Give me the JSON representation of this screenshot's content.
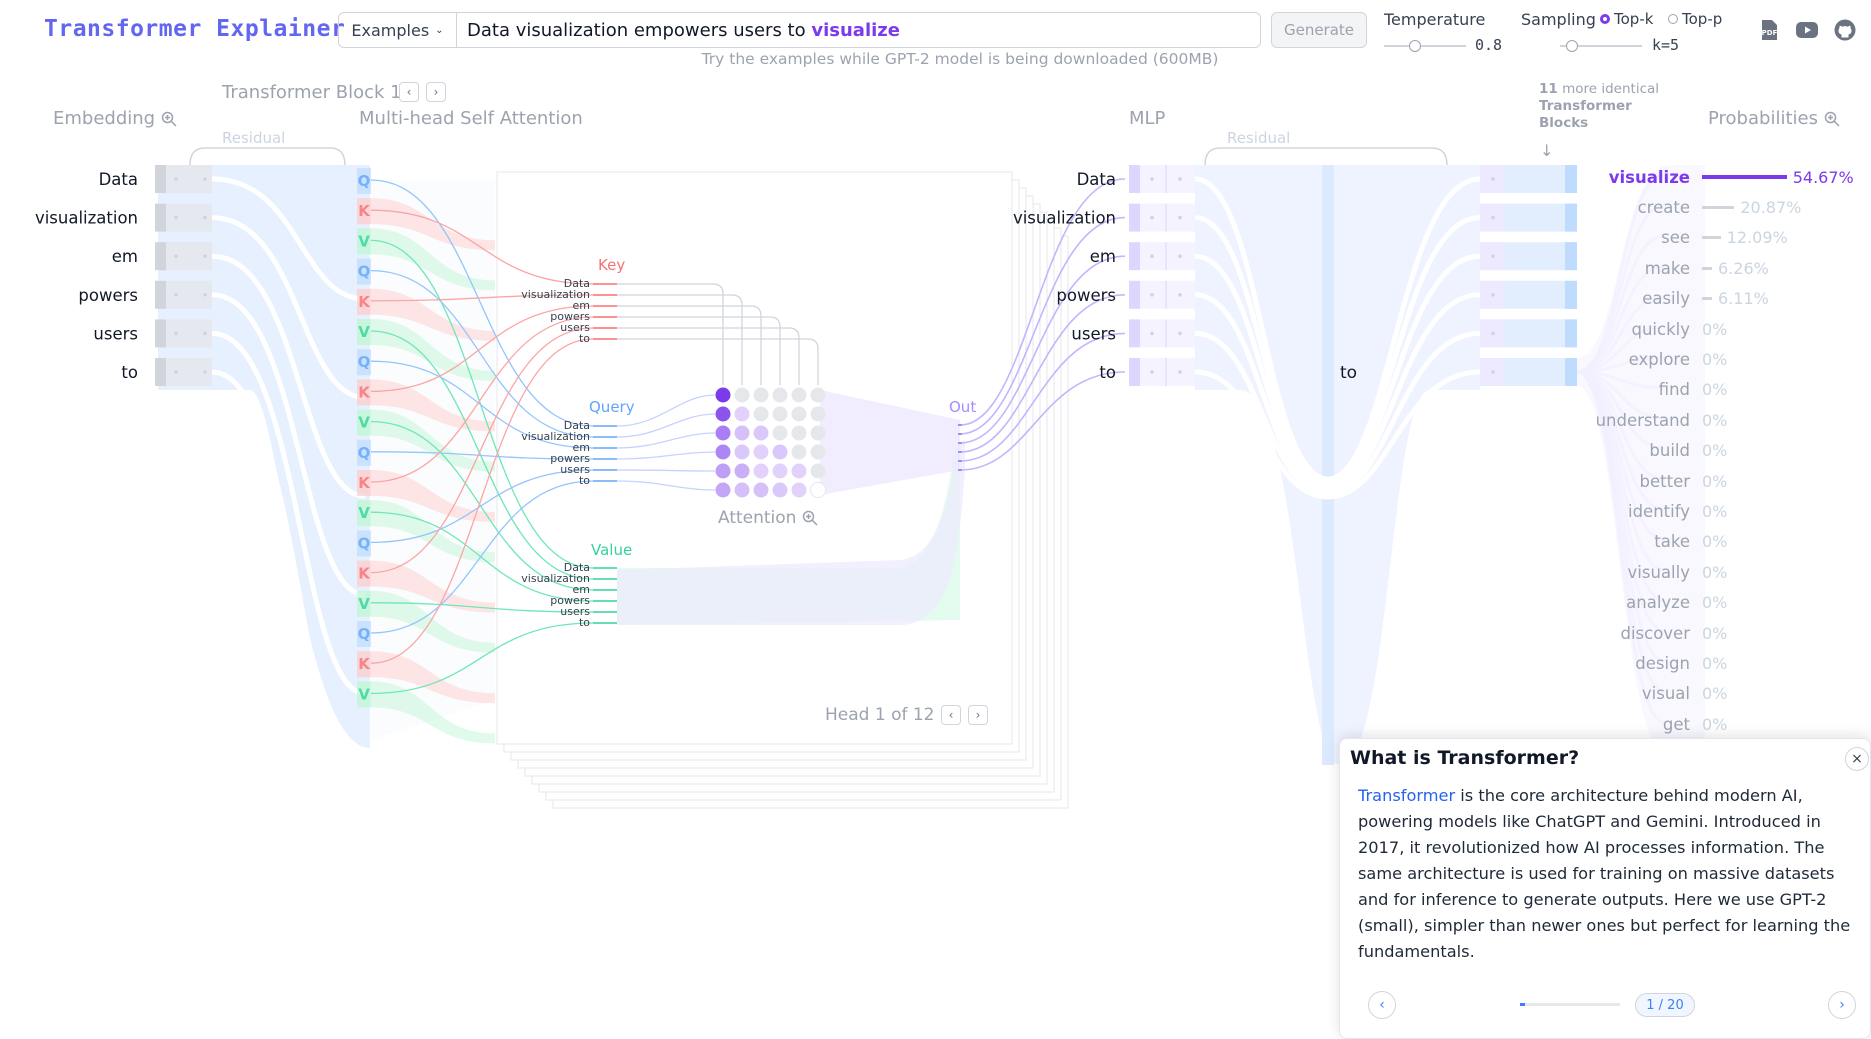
{
  "app": {
    "title": "Transformer Explainer"
  },
  "input": {
    "examples_label": "Examples",
    "prompt_text": "Data visualization empowers users to",
    "predicted_word": "visualize",
    "generate_label": "Generate",
    "hint": "Try the examples while GPT-2 model is being downloaded (600MB)"
  },
  "controls": {
    "temperature_label": "Temperature",
    "temperature_value": 0.8,
    "sampling_label": "Sampling",
    "topk_label": "Top-k",
    "topp_label": "Top-p",
    "k_value": "k=5"
  },
  "header_icons": [
    "pdf-icon",
    "youtube-icon",
    "github-icon"
  ],
  "sections": {
    "embedding": "Embedding",
    "block": "Transformer Block 1",
    "attention": "Multi-head Self Attention",
    "residual": "Residual",
    "mlp": "MLP",
    "probabilities": "Probabilities",
    "more_blocks_count": "11",
    "more_blocks_text": "more identical",
    "more_blocks_text2": "Transformer Blocks"
  },
  "tokens": [
    "Data",
    "visualization",
    "em",
    "powers",
    "users",
    "to"
  ],
  "attention": {
    "key_label": "Key",
    "query_label": "Query",
    "value_label": "Value",
    "out_label": "Out",
    "attention_label": "Attention",
    "head_label": "Head 1 of 12"
  },
  "qkv_letters": [
    "Q",
    "K",
    "V"
  ],
  "last_token": "to",
  "probabilities": [
    {
      "word": "visualize",
      "pct": "54.67%",
      "value": 0.5467
    },
    {
      "word": "create",
      "pct": "20.87%",
      "value": 0.2087
    },
    {
      "word": "see",
      "pct": "12.09%",
      "value": 0.1209
    },
    {
      "word": "make",
      "pct": "6.26%",
      "value": 0.0626
    },
    {
      "word": "easily",
      "pct": "6.11%",
      "value": 0.0611
    },
    {
      "word": "quickly",
      "pct": "0%",
      "value": 0
    },
    {
      "word": "explore",
      "pct": "0%",
      "value": 0
    },
    {
      "word": "find",
      "pct": "0%",
      "value": 0
    },
    {
      "word": "understand",
      "pct": "0%",
      "value": 0
    },
    {
      "word": "build",
      "pct": "0%",
      "value": 0
    },
    {
      "word": "better",
      "pct": "0%",
      "value": 0
    },
    {
      "word": "identify",
      "pct": "0%",
      "value": 0
    },
    {
      "word": "take",
      "pct": "0%",
      "value": 0
    },
    {
      "word": "visually",
      "pct": "0%",
      "value": 0
    },
    {
      "word": "analyze",
      "pct": "0%",
      "value": 0
    },
    {
      "word": "discover",
      "pct": "0%",
      "value": 0
    },
    {
      "word": "design",
      "pct": "0%",
      "value": 0
    },
    {
      "word": "visual",
      "pct": "0%",
      "value": 0
    },
    {
      "word": "get",
      "pct": "0%",
      "value": 0
    }
  ],
  "tooltip": {
    "title": "What is Transformer?",
    "link": "Transformer",
    "body": " is the core architecture behind modern AI, powering models like ChatGPT and Gemini. Introduced in 2017, it revolutionized how AI processes information. The same architecture is used for training on massive datasets and for inference to generate outputs. Here we use GPT-2 (small), simpler than newer ones but perfect for learning the fundamentals.",
    "page": "1 / 20",
    "progress": 0.05,
    "close": "×"
  },
  "colors": {
    "accent": "#7c3aed",
    "brand": "#6366f1",
    "query": "#60a5fa",
    "key": "#f87171",
    "value": "#34d399",
    "link": "#2563eb"
  }
}
